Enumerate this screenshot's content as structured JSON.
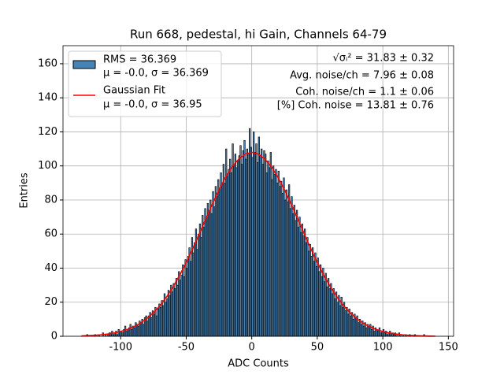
{
  "chart_data": {
    "type": "histogram",
    "title": "Run 668, pedestal, hi Gain, Channels 64-79",
    "xlabel": "ADC Counts",
    "ylabel": "Entries",
    "bins": [
      -128,
      -127,
      -126,
      -125,
      -124,
      -123,
      -122,
      -121,
      -120,
      -119,
      -118,
      -117,
      -116,
      -115,
      -114,
      -113,
      -112,
      -111,
      -110,
      -109,
      -108,
      -107,
      -106,
      -105,
      -104,
      -103,
      -102,
      -101,
      -100,
      -99,
      -98,
      -97,
      -96,
      -95,
      -94,
      -93,
      -92,
      -91,
      -90,
      -89,
      -88,
      -87,
      -86,
      -85,
      -84,
      -83,
      -82,
      -81,
      -80,
      -79,
      -78,
      -77,
      -76,
      -75,
      -74,
      -73,
      -72,
      -71,
      -70,
      -69,
      -68,
      -67,
      -66,
      -65,
      -64,
      -63,
      -62,
      -61,
      -60,
      -59,
      -58,
      -57,
      -56,
      -55,
      -54,
      -53,
      -52,
      -51,
      -50,
      -49,
      -48,
      -47,
      -46,
      -45,
      -44,
      -43,
      -42,
      -41,
      -40,
      -39,
      -38,
      -37,
      -36,
      -35,
      -34,
      -33,
      -32,
      -31,
      -30,
      -29,
      -28,
      -27,
      -26,
      -25,
      -24,
      -23,
      -22,
      -21,
      -20,
      -19,
      -18,
      -17,
      -16,
      -15,
      -14,
      -13,
      -12,
      -11,
      -10,
      -9,
      -8,
      -7,
      -6,
      -5,
      -4,
      -3,
      -2,
      -1,
      0,
      1,
      2,
      3,
      4,
      5,
      6,
      7,
      8,
      9,
      10,
      11,
      12,
      13,
      14,
      15,
      16,
      17,
      18,
      19,
      20,
      21,
      22,
      23,
      24,
      25,
      26,
      27,
      28,
      29,
      30,
      31,
      32,
      33,
      34,
      35,
      36,
      37,
      38,
      39,
      40,
      41,
      42,
      43,
      44,
      45,
      46,
      47,
      48,
      49,
      50,
      51,
      52,
      53,
      54,
      55,
      56,
      57,
      58,
      59,
      60,
      61,
      62,
      63,
      64,
      65,
      66,
      67,
      68,
      69,
      70,
      71,
      72,
      73,
      74,
      75,
      76,
      77,
      78,
      79,
      80,
      81,
      82,
      83,
      84,
      85,
      86,
      87,
      88,
      89,
      90,
      91,
      92,
      93,
      94,
      95,
      96,
      97,
      98,
      99,
      100,
      101,
      102,
      103,
      104,
      105,
      106,
      107,
      108,
      109,
      110,
      111,
      112,
      113,
      114,
      115,
      116,
      117,
      118,
      119,
      120,
      121,
      122,
      123,
      124,
      125,
      126,
      127,
      128,
      129,
      130,
      131,
      132,
      133,
      134,
      135,
      136,
      137,
      138,
      139,
      140
    ],
    "counts": [
      0,
      0,
      1,
      0,
      0,
      0,
      0,
      0,
      1,
      0,
      0,
      1,
      0,
      0,
      2,
      0,
      1,
      0,
      1,
      2,
      2,
      3,
      1,
      2,
      3,
      1,
      4,
      3,
      3,
      2,
      4,
      6,
      3,
      4,
      5,
      7,
      4,
      6,
      5,
      8,
      7,
      6,
      9,
      8,
      10,
      7,
      11,
      12,
      9,
      12,
      14,
      11,
      15,
      13,
      17,
      12,
      16,
      19,
      17,
      21,
      18,
      25,
      20,
      22,
      27,
      24,
      30,
      26,
      31,
      28,
      34,
      30,
      38,
      33,
      36,
      42,
      35,
      45,
      40,
      47,
      52,
      44,
      58,
      49,
      55,
      63,
      51,
      60,
      66,
      58,
      71,
      64,
      75,
      69,
      78,
      73,
      80,
      72,
      85,
      76,
      88,
      82,
      92,
      86,
      96,
      89,
      101,
      90,
      110,
      94,
      98,
      104,
      96,
      113,
      100,
      107,
      99,
      103,
      106,
      112,
      101,
      109,
      115,
      104,
      110,
      107,
      122,
      111,
      105,
      120,
      108,
      113,
      102,
      117,
      106,
      110,
      101,
      109,
      107,
      96,
      103,
      99,
      108,
      92,
      100,
      95,
      98,
      90,
      97,
      88,
      91,
      84,
      93,
      80,
      86,
      79,
      89,
      75,
      82,
      72,
      77,
      68,
      74,
      64,
      70,
      61,
      66,
      59,
      63,
      55,
      58,
      50,
      54,
      47,
      52,
      44,
      49,
      41,
      46,
      38,
      42,
      35,
      40,
      32,
      37,
      29,
      34,
      28,
      31,
      25,
      28,
      22,
      26,
      20,
      24,
      18,
      23,
      17,
      20,
      15,
      17,
      13,
      16,
      12,
      14,
      10,
      13,
      11,
      12,
      8,
      10,
      7,
      9,
      6,
      8,
      5,
      7,
      6,
      7,
      4,
      6,
      3,
      5,
      4,
      3,
      5,
      2,
      3,
      4,
      2,
      3,
      1,
      2,
      3,
      1,
      2,
      1,
      2,
      1,
      0,
      2,
      1,
      0,
      1,
      0,
      1,
      0,
      0,
      1,
      0,
      0,
      0,
      1,
      0,
      0,
      0,
      0,
      0,
      0,
      1,
      0,
      0,
      0,
      0,
      0,
      0,
      0,
      0
    ],
    "color": "#4682b4",
    "edgecolor": "#000000",
    "hist_label": [
      "RMS = 36.369",
      "μ = -0.0, σ = 36.369"
    ],
    "fit": {
      "name": "Gaussian Fit",
      "params": "μ = -0.0, σ = 36.95",
      "color": "#ff0000",
      "x": [
        -130,
        -125,
        -120,
        -115,
        -110,
        -105,
        -100,
        -95,
        -90,
        -85,
        -80,
        -75,
        -70,
        -65,
        -60,
        -55,
        -50,
        -45,
        -40,
        -35,
        -30,
        -25,
        -20,
        -15,
        -10,
        -5,
        0,
        5,
        10,
        15,
        20,
        25,
        30,
        35,
        40,
        45,
        50,
        55,
        60,
        65,
        70,
        75,
        80,
        85,
        90,
        95,
        100,
        105,
        110,
        115,
        120,
        125,
        130,
        135,
        140
      ],
      "values": [
        0.2,
        0.36,
        0.56,
        0.86,
        1.3,
        1.9,
        2.8,
        4,
        5.6,
        7.7,
        10.4,
        13.8,
        18,
        23.1,
        29,
        35.8,
        43.3,
        51.5,
        60.2,
        69,
        77.7,
        86,
        93.3,
        99.5,
        104,
        107,
        108,
        107,
        104,
        99.5,
        93.3,
        86,
        77.7,
        69,
        60.2,
        51.5,
        43.3,
        35.8,
        29,
        23.1,
        18,
        13.8,
        10.4,
        7.7,
        5.6,
        4,
        2.8,
        1.9,
        1.3,
        0.86,
        0.56,
        0.36,
        0.2,
        0.1,
        0.06
      ]
    },
    "annotations": [
      "√σᵢ² = 31.83 ± 0.32",
      "Avg. noise/ch = 7.96 ± 0.08",
      "Coh. noise/ch = 1.1 ± 0.06",
      "[%] Coh. noise = 13.81 ± 0.76"
    ],
    "xlim": [
      -144,
      154
    ],
    "ylim": [
      0,
      170.6
    ],
    "xticks": [
      -100,
      -50,
      0,
      50,
      100,
      150
    ],
    "yticks": [
      0,
      20,
      40,
      60,
      80,
      100,
      120,
      140,
      160
    ],
    "grid": true,
    "legend": "upper left"
  }
}
